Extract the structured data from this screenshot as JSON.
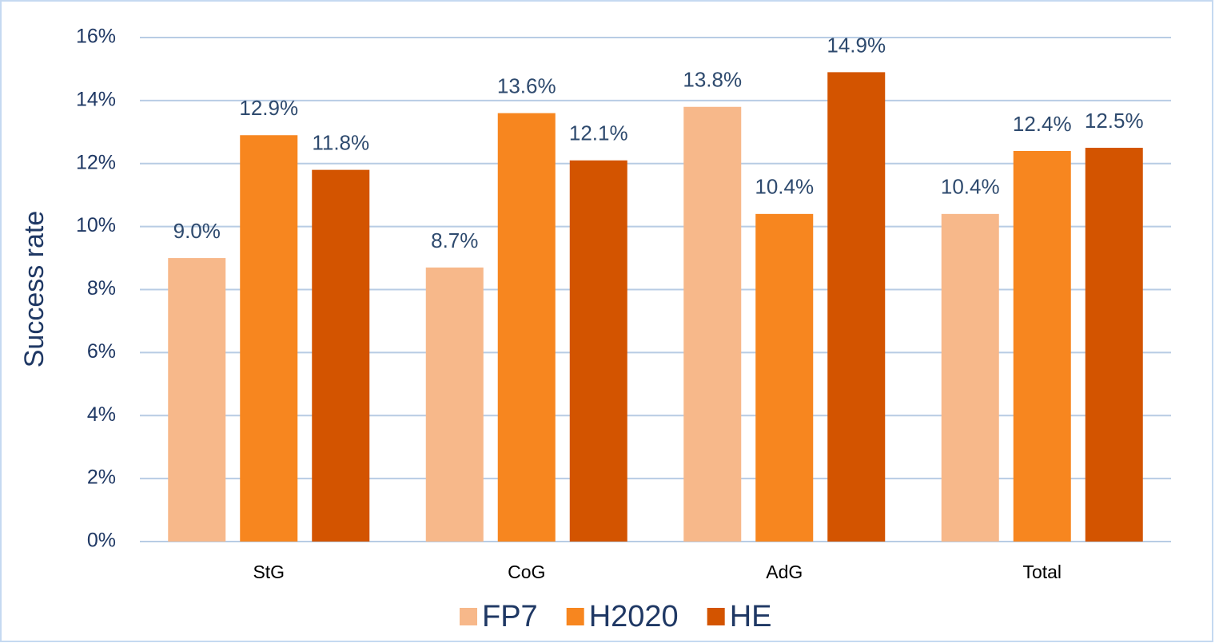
{
  "chart_data": {
    "type": "bar",
    "y_label": "Success rate",
    "categories": [
      "StG",
      "CoG",
      "AdG",
      "Total"
    ],
    "series": [
      {
        "name": "FP7",
        "color": "#f7b88a",
        "values": [
          9.0,
          8.7,
          13.8,
          10.4
        ],
        "value_labels": [
          "9.0%",
          "8.7%",
          "13.8%",
          "10.4%"
        ]
      },
      {
        "name": "H2020",
        "color": "#f7861f",
        "values": [
          12.9,
          13.6,
          10.4,
          12.4
        ],
        "value_labels": [
          "12.9%",
          "13.6%",
          "10.4%",
          "12.4%"
        ]
      },
      {
        "name": "HE",
        "color": "#d35400",
        "values": [
          11.8,
          12.1,
          14.9,
          12.5
        ],
        "value_labels": [
          "11.8%",
          "12.1%",
          "14.9%",
          "12.5%"
        ]
      }
    ],
    "ylim": [
      0,
      16
    ],
    "yticks": [
      {
        "value": 0,
        "label": "0%"
      },
      {
        "value": 2,
        "label": "2%"
      },
      {
        "value": 4,
        "label": "4%"
      },
      {
        "value": 6,
        "label": "6%"
      },
      {
        "value": 8,
        "label": "8%"
      },
      {
        "value": 10,
        "label": "10%"
      },
      {
        "value": 12,
        "label": "12%"
      },
      {
        "value": 14,
        "label": "14%"
      },
      {
        "value": 16,
        "label": "16%"
      }
    ],
    "grid": true,
    "legend": "bottom"
  }
}
